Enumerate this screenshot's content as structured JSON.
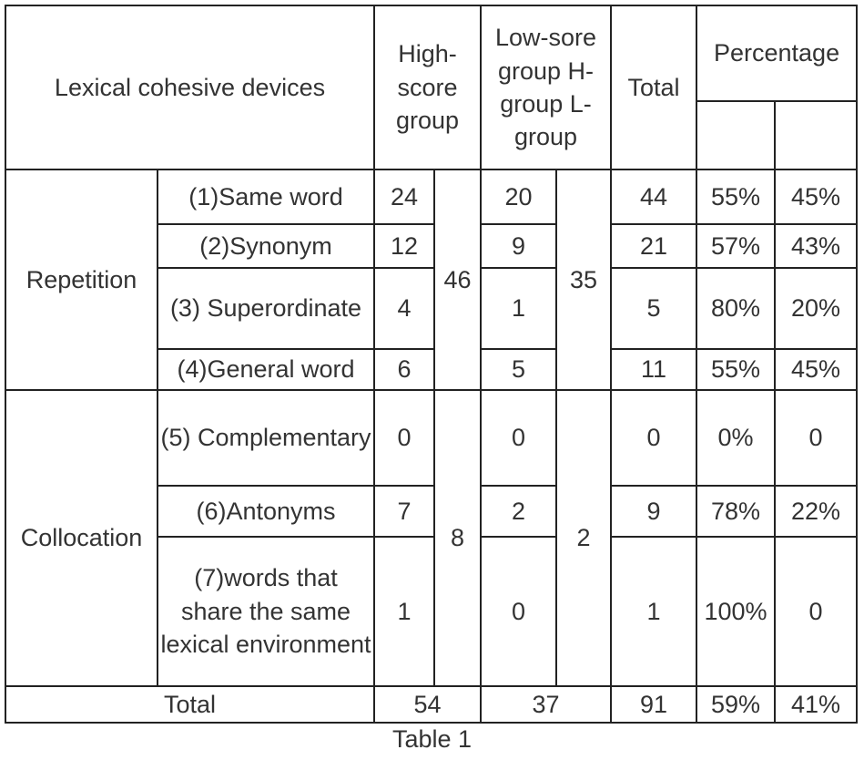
{
  "table": {
    "header": {
      "devices": "Lexical cohesive devices",
      "high": "High-score group",
      "low": "Low-sore group H-group L-group",
      "total": "Total",
      "percentage": "Percentage"
    },
    "groups": [
      {
        "name": "Repetition",
        "high_subtotal": 46,
        "low_subtotal": 35,
        "rows": [
          {
            "device": "(1)Same word",
            "high": 24,
            "low": 20,
            "total": 44,
            "high_pct": "55%",
            "low_pct": "45%"
          },
          {
            "device": "(2)Synonym",
            "high": 12,
            "low": 9,
            "total": 21,
            "high_pct": "57%",
            "low_pct": "43%"
          },
          {
            "device": "(3) Superordinate",
            "high": 4,
            "low": 1,
            "total": 5,
            "high_pct": "80%",
            "low_pct": "20%"
          },
          {
            "device": "(4)General word",
            "high": 6,
            "low": 5,
            "total": 11,
            "high_pct": "55%",
            "low_pct": "45%"
          }
        ]
      },
      {
        "name": "Collocation",
        "high_subtotal": 8,
        "low_subtotal": 2,
        "rows": [
          {
            "device": "(5) Complementary",
            "high": 0,
            "low": 0,
            "total": 0,
            "high_pct": "0%",
            "low_pct": "0"
          },
          {
            "device": "(6)Antonyms",
            "high": 7,
            "low": 2,
            "total": 9,
            "high_pct": "78%",
            "low_pct": "22%"
          },
          {
            "device": "(7)words that share the same lexical environment",
            "high": 1,
            "low": 0,
            "total": 1,
            "high_pct": "100%",
            "low_pct": "0"
          }
        ]
      }
    ],
    "total_row": {
      "label": "Total",
      "high": 54,
      "low": 37,
      "total": 91,
      "high_pct": "59%",
      "low_pct": "41%"
    }
  },
  "caption": "Table 1"
}
